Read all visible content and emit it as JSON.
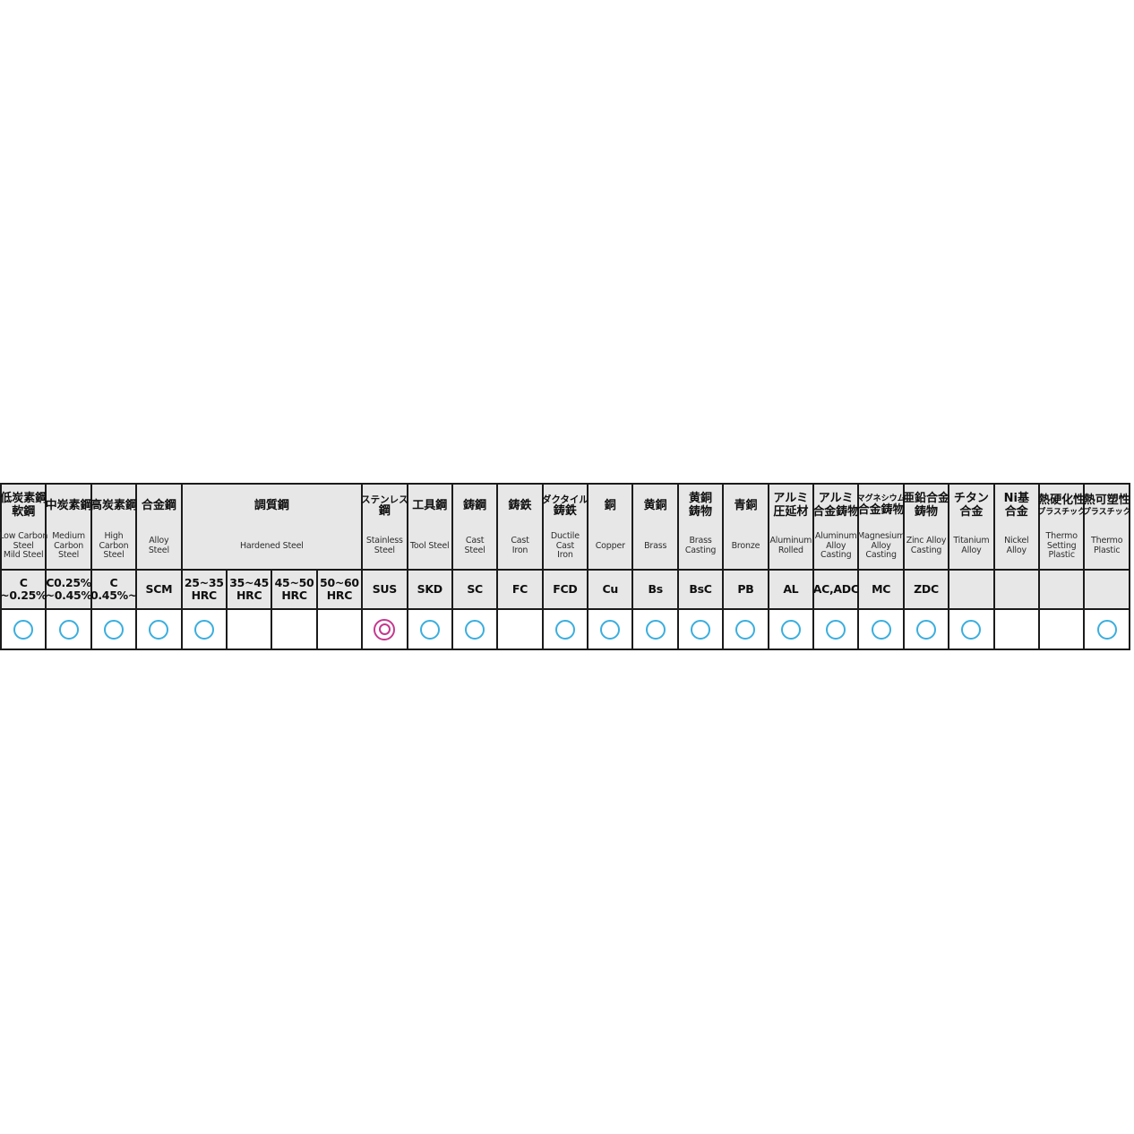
{
  "colors": {
    "border": "#1b1b1b",
    "header_bg": "#e7e7e7",
    "circle": "#3aaede",
    "double_circle": "#c5388e"
  },
  "table": {
    "header_cells": [
      {
        "span": 1,
        "jp": [
          "低炭素鋼",
          "軟鋼"
        ],
        "en": [
          "Low Carbon",
          "Steel",
          "Mild Steel"
        ]
      },
      {
        "span": 1,
        "jp": [
          "中炭素鋼"
        ],
        "en": [
          "Medium",
          "Carbon",
          "Steel"
        ]
      },
      {
        "span": 1,
        "jp": [
          "高炭素鋼"
        ],
        "en": [
          "High",
          "Carbon",
          "Steel"
        ]
      },
      {
        "span": 1,
        "jp": [
          "合金鋼"
        ],
        "en": [
          "Alloy",
          "Steel"
        ]
      },
      {
        "span": 4,
        "jp": [
          "調質鋼"
        ],
        "en": [
          "Hardened Steel"
        ]
      },
      {
        "span": 1,
        "jp": [
          "ステンレス",
          "鋼"
        ],
        "en": [
          "Stainless",
          "Steel"
        ]
      },
      {
        "span": 1,
        "jp": [
          "工具鋼"
        ],
        "en": [
          "Tool Steel"
        ]
      },
      {
        "span": 1,
        "jp": [
          "鋳鋼"
        ],
        "en": [
          "Cast",
          "Steel"
        ]
      },
      {
        "span": 1,
        "jp": [
          "鋳鉄"
        ],
        "en": [
          "Cast",
          "Iron"
        ]
      },
      {
        "span": 1,
        "jp": [
          "ダクタイル",
          "鋳鉄"
        ],
        "en": [
          "Ductile",
          "Cast",
          "Iron"
        ]
      },
      {
        "span": 1,
        "jp": [
          "銅"
        ],
        "en": [
          "Copper"
        ]
      },
      {
        "span": 1,
        "jp": [
          "黄銅"
        ],
        "en": [
          "Brass"
        ]
      },
      {
        "span": 1,
        "jp": [
          "黄銅",
          "鋳物"
        ],
        "en": [
          "Brass",
          "Casting"
        ]
      },
      {
        "span": 1,
        "jp": [
          "青銅"
        ],
        "en": [
          "Bronze"
        ]
      },
      {
        "span": 1,
        "jp": [
          "アルミ",
          "圧延材"
        ],
        "en": [
          "Aluminum",
          "Rolled"
        ]
      },
      {
        "span": 1,
        "jp": [
          "アルミ",
          "合金鋳物"
        ],
        "en": [
          "Aluminum",
          "Alloy",
          "Casting"
        ]
      },
      {
        "span": 1,
        "jp": [
          "マグネシウム",
          "合金鋳物"
        ],
        "en": [
          "Magnesium",
          "Alloy",
          "Casting"
        ]
      },
      {
        "span": 1,
        "jp": [
          "亜鉛合金",
          "鋳物"
        ],
        "en": [
          "Zinc Alloy",
          "Casting"
        ]
      },
      {
        "span": 1,
        "jp": [
          "チタン",
          "合金"
        ],
        "en": [
          "Titanium",
          "Alloy"
        ]
      },
      {
        "span": 1,
        "jp": [
          "Ni基",
          "合金"
        ],
        "en": [
          "Nickel",
          "Alloy"
        ]
      },
      {
        "span": 1,
        "jp": [
          "熱硬化性",
          "プラスチック"
        ],
        "en": [
          "Thermo",
          "Setting",
          "Plastic"
        ]
      },
      {
        "span": 1,
        "jp": [
          "熱可塑性",
          "プラスチック"
        ],
        "en": [
          "Thermo",
          "Plastic"
        ]
      }
    ],
    "code_cells": [
      [
        "C",
        "~0.25%"
      ],
      [
        "C0.25%",
        "~0.45%"
      ],
      [
        "C",
        "0.45%~"
      ],
      [
        "SCM"
      ],
      [
        "25~35",
        "HRC"
      ],
      [
        "35~45",
        "HRC"
      ],
      [
        "45~50",
        "HRC"
      ],
      [
        "50~60",
        "HRC"
      ],
      [
        "SUS"
      ],
      [
        "SKD"
      ],
      [
        "SC"
      ],
      [
        "FC"
      ],
      [
        "FCD"
      ],
      [
        "Cu"
      ],
      [
        "Bs"
      ],
      [
        "BsC"
      ],
      [
        "PB"
      ],
      [
        "AL"
      ],
      [
        "AC,ADC"
      ],
      [
        "MC"
      ],
      [
        "ZDC"
      ],
      [],
      [],
      [],
      []
    ],
    "mark_cells": [
      "single",
      "single",
      "single",
      "single",
      "single",
      "",
      "",
      "",
      "double",
      "single",
      "single",
      "",
      "single",
      "single",
      "single",
      "single",
      "single",
      "single",
      "single",
      "single",
      "single",
      "single",
      "",
      "",
      "single"
    ]
  },
  "chart_data": {
    "type": "table",
    "title": "",
    "legend_symbols": {
      "double_circle": "◎",
      "circle": "○"
    },
    "columns": [
      {
        "jp": "低炭素鋼 軟鋼",
        "en": "Low Carbon Steel Mild Steel",
        "code": "C ~0.25%",
        "mark": "○"
      },
      {
        "jp": "中炭素鋼",
        "en": "Medium Carbon Steel",
        "code": "C0.25% ~0.45%",
        "mark": "○"
      },
      {
        "jp": "高炭素鋼",
        "en": "High Carbon Steel",
        "code": "C 0.45%~",
        "mark": "○"
      },
      {
        "jp": "合金鋼",
        "en": "Alloy Steel",
        "code": "SCM",
        "mark": "○"
      },
      {
        "jp": "調質鋼",
        "en": "Hardened Steel",
        "code": "25~35 HRC",
        "mark": "○"
      },
      {
        "jp": "調質鋼",
        "en": "Hardened Steel",
        "code": "35~45 HRC",
        "mark": ""
      },
      {
        "jp": "調質鋼",
        "en": "Hardened Steel",
        "code": "45~50 HRC",
        "mark": ""
      },
      {
        "jp": "調質鋼",
        "en": "Hardened Steel",
        "code": "50~60 HRC",
        "mark": ""
      },
      {
        "jp": "ステンレス鋼",
        "en": "Stainless Steel",
        "code": "SUS",
        "mark": "◎"
      },
      {
        "jp": "工具鋼",
        "en": "Tool Steel",
        "code": "SKD",
        "mark": "○"
      },
      {
        "jp": "鋳鋼",
        "en": "Cast Steel",
        "code": "SC",
        "mark": "○"
      },
      {
        "jp": "鋳鉄",
        "en": "Cast Iron",
        "code": "FC",
        "mark": ""
      },
      {
        "jp": "ダクタイル鋳鉄",
        "en": "Ductile Cast Iron",
        "code": "FCD",
        "mark": "○"
      },
      {
        "jp": "銅",
        "en": "Copper",
        "code": "Cu",
        "mark": "○"
      },
      {
        "jp": "黄銅",
        "en": "Brass",
        "code": "Bs",
        "mark": "○"
      },
      {
        "jp": "黄銅鋳物",
        "en": "Brass Casting",
        "code": "BsC",
        "mark": "○"
      },
      {
        "jp": "青銅",
        "en": "Bronze",
        "code": "PB",
        "mark": "○"
      },
      {
        "jp": "アルミ圧延材",
        "en": "Aluminum Rolled",
        "code": "AL",
        "mark": "○"
      },
      {
        "jp": "アルミ合金鋳物",
        "en": "Aluminum Alloy Casting",
        "code": "AC,ADC",
        "mark": "○"
      },
      {
        "jp": "マグネシウム合金鋳物",
        "en": "Magnesium Alloy Casting",
        "code": "MC",
        "mark": "○"
      },
      {
        "jp": "亜鉛合金鋳物",
        "en": "Zinc Alloy Casting",
        "code": "ZDC",
        "mark": "○"
      },
      {
        "jp": "チタン合金",
        "en": "Titanium Alloy",
        "code": "",
        "mark": "○"
      },
      {
        "jp": "Ni基合金",
        "en": "Nickel Alloy",
        "code": "",
        "mark": ""
      },
      {
        "jp": "熱硬化性プラスチック",
        "en": "Thermo Setting Plastic",
        "code": "",
        "mark": ""
      },
      {
        "jp": "熱可塑性プラスチック",
        "en": "Thermo Plastic",
        "code": "",
        "mark": "○"
      }
    ]
  }
}
